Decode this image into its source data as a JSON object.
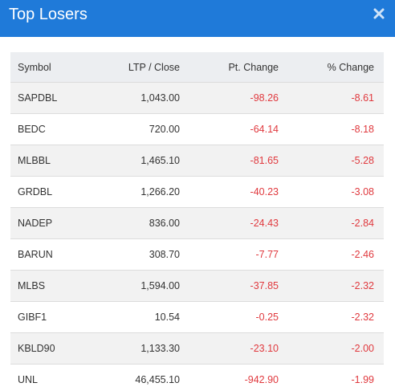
{
  "modal": {
    "title": "Top Losers",
    "close_icon": "close-icon",
    "header_color": "#1f7ad9"
  },
  "table": {
    "headers": {
      "symbol": "Symbol",
      "ltp": "LTP / Close",
      "pt_change": "Pt. Change",
      "pct_change": "% Change"
    },
    "rows": [
      {
        "symbol": "SAPDBL",
        "ltp": "1,043.00",
        "pt_change": "-98.26",
        "pct_change": "-8.61"
      },
      {
        "symbol": "BEDC",
        "ltp": "720.00",
        "pt_change": "-64.14",
        "pct_change": "-8.18"
      },
      {
        "symbol": "MLBBL",
        "ltp": "1,465.10",
        "pt_change": "-81.65",
        "pct_change": "-5.28"
      },
      {
        "symbol": "GRDBL",
        "ltp": "1,266.20",
        "pt_change": "-40.23",
        "pct_change": "-3.08"
      },
      {
        "symbol": "NADEP",
        "ltp": "836.00",
        "pt_change": "-24.43",
        "pct_change": "-2.84"
      },
      {
        "symbol": "BARUN",
        "ltp": "308.70",
        "pt_change": "-7.77",
        "pct_change": "-2.46"
      },
      {
        "symbol": "MLBS",
        "ltp": "1,594.00",
        "pt_change": "-37.85",
        "pct_change": "-2.32"
      },
      {
        "symbol": "GIBF1",
        "ltp": "10.54",
        "pt_change": "-0.25",
        "pct_change": "-2.32"
      },
      {
        "symbol": "KBLD90",
        "ltp": "1,133.30",
        "pt_change": "-23.10",
        "pct_change": "-2.00"
      },
      {
        "symbol": "UNL",
        "ltp": "46,455.10",
        "pt_change": "-942.90",
        "pct_change": "-1.99"
      }
    ],
    "negative_color": "#e0393e"
  }
}
